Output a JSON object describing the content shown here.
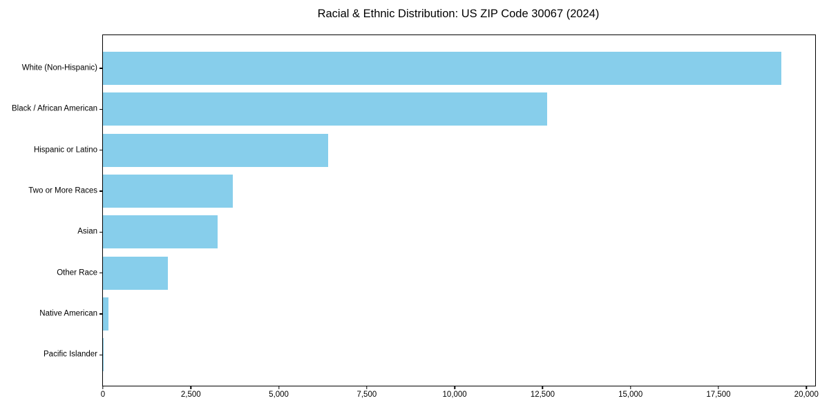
{
  "title": "Racial & Ethnic Distribution: US ZIP Code 30067 (2024)",
  "chart_data": {
    "type": "bar",
    "orientation": "horizontal",
    "title": "Racial & Ethnic Distribution: US ZIP Code 30067 (2024)",
    "xlabel": "",
    "ylabel": "",
    "categories": [
      "White (Non-Hispanic)",
      "Black / African American",
      "Hispanic or Latino",
      "Two or More Races",
      "Asian",
      "Other Race",
      "Native American",
      "Pacific Islander"
    ],
    "values": [
      19290,
      12630,
      6400,
      3690,
      3260,
      1850,
      150,
      15
    ],
    "xlim": [
      0,
      20250
    ],
    "xticks": [
      0,
      2500,
      5000,
      7500,
      10000,
      12500,
      15000,
      17500,
      20000
    ],
    "xtick_labels": [
      "0",
      "2,500",
      "5,000",
      "7,500",
      "10,000",
      "12,500",
      "15,000",
      "17,500",
      "20,000"
    ],
    "bar_color": "#87CEEB",
    "axis_color": "#000000",
    "grid": false,
    "legend": "none"
  }
}
